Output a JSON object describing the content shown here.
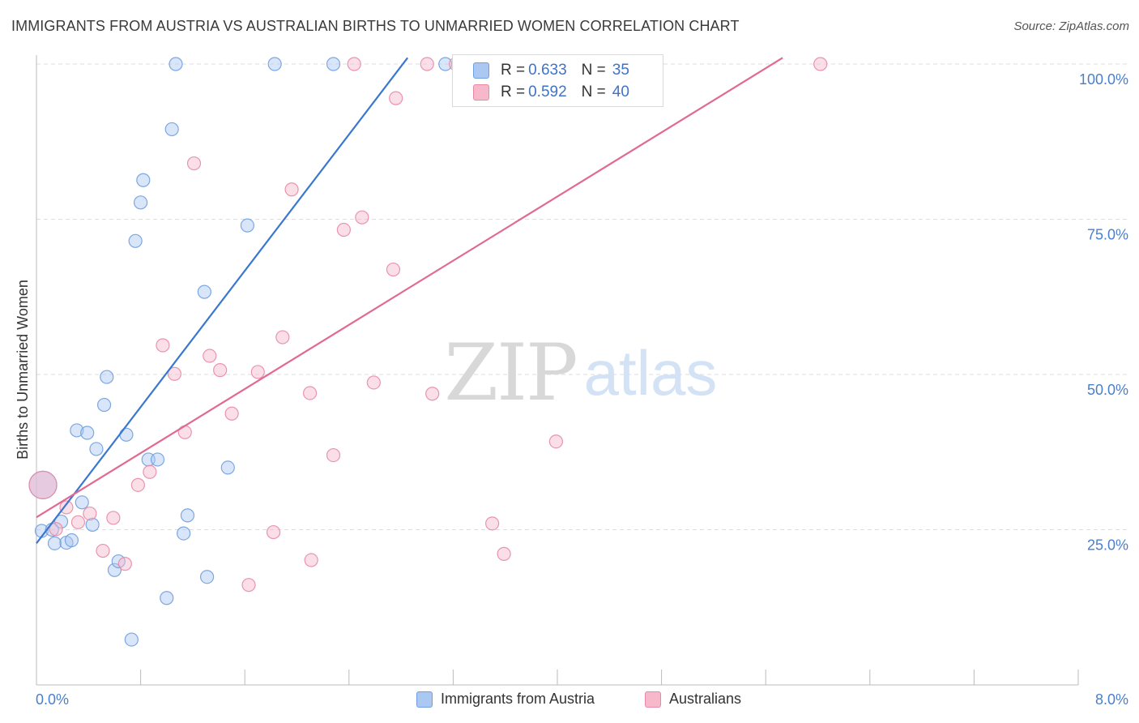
{
  "title": "IMMIGRANTS FROM AUSTRIA VS AUSTRALIAN BIRTHS TO UNMARRIED WOMEN CORRELATION CHART",
  "source": "Source: ZipAtlas.com",
  "watermark": {
    "zip": "ZIP",
    "atlas": "atlas"
  },
  "legend_inset": [
    {
      "r_label": "R = ",
      "r_value": "0.633",
      "n_label": "N = ",
      "n_value": "35",
      "color": "#aac8f2"
    },
    {
      "r_label": "R = ",
      "r_value": "0.592",
      "n_label": "N = ",
      "n_value": "40",
      "color": "#f7b8cb"
    }
  ],
  "legend_bottom": [
    {
      "label": "Immigrants from Austria",
      "color": "#aac8f2"
    },
    {
      "label": "Australians",
      "color": "#f7b8cb"
    }
  ],
  "chart_data": {
    "type": "scatter",
    "title": "IMMIGRANTS FROM AUSTRIA VS AUSTRALIAN BIRTHS TO UNMARRIED WOMEN CORRELATION CHART",
    "xlabel": "",
    "ylabel": "Births to Unmarried Women",
    "xlim": [
      0,
      8
    ],
    "ylim": [
      0,
      102
    ],
    "x_tick_labels": [
      "0.0%",
      "8.0%"
    ],
    "y_ticks": [
      25,
      50,
      75,
      100
    ],
    "y_tick_labels": [
      "25.0%",
      "50.0%",
      "75.0%",
      "100.0%"
    ],
    "grid": true,
    "legend_position": "top-center",
    "series": [
      {
        "name": "Immigrants from Austria",
        "color": "#6f9fe0",
        "fill": "#aac8f2",
        "r": 0.633,
        "n": 35,
        "trend": {
          "x": [
            0.0,
            2.85
          ],
          "y": [
            22.8,
            101.0
          ],
          "color": "#3a78d0"
        },
        "points": [
          [
            0.05,
            32.2,
            "big"
          ],
          [
            0.04,
            24.8
          ],
          [
            0.12,
            25.0
          ],
          [
            0.14,
            22.8
          ],
          [
            0.23,
            22.9
          ],
          [
            0.27,
            23.3
          ],
          [
            0.19,
            26.3
          ],
          [
            0.35,
            29.4
          ],
          [
            0.43,
            25.8
          ],
          [
            0.31,
            41.0
          ],
          [
            0.39,
            40.6
          ],
          [
            0.46,
            38.0
          ],
          [
            0.52,
            45.1
          ],
          [
            0.54,
            49.6
          ],
          [
            0.6,
            18.5
          ],
          [
            0.63,
            19.9
          ],
          [
            0.69,
            40.3
          ],
          [
            0.73,
            7.3
          ],
          [
            0.76,
            71.5
          ],
          [
            0.8,
            77.7
          ],
          [
            0.82,
            81.3
          ],
          [
            0.86,
            36.3
          ],
          [
            0.93,
            36.3
          ],
          [
            1.0,
            14.0
          ],
          [
            1.04,
            89.5
          ],
          [
            1.07,
            100.0
          ],
          [
            1.13,
            24.4
          ],
          [
            1.16,
            27.3
          ],
          [
            1.29,
            63.3
          ],
          [
            1.31,
            17.4
          ],
          [
            1.47,
            35.0
          ],
          [
            1.62,
            74.0
          ],
          [
            1.83,
            100.0
          ],
          [
            2.28,
            100.0
          ],
          [
            3.14,
            100.0
          ]
        ]
      },
      {
        "name": "Australians",
        "color": "#e88aa5",
        "fill": "#f7b8cb",
        "r": 0.592,
        "n": 40,
        "trend": {
          "x": [
            0.0,
            5.73
          ],
          "y": [
            27.0,
            101.0
          ],
          "color": "#e06a92"
        },
        "points": [
          [
            0.05,
            32.2,
            "big"
          ],
          [
            0.15,
            25.1
          ],
          [
            0.23,
            28.6
          ],
          [
            0.32,
            26.2
          ],
          [
            0.41,
            27.6
          ],
          [
            0.51,
            21.6
          ],
          [
            0.59,
            26.9
          ],
          [
            0.68,
            19.5
          ],
          [
            0.78,
            32.2
          ],
          [
            0.87,
            34.3
          ],
          [
            0.97,
            54.7
          ],
          [
            1.06,
            50.1
          ],
          [
            1.14,
            40.7
          ],
          [
            1.21,
            84.0
          ],
          [
            1.33,
            53.0
          ],
          [
            1.41,
            50.7
          ],
          [
            1.5,
            43.7
          ],
          [
            1.63,
            16.1
          ],
          [
            1.7,
            50.4
          ],
          [
            1.82,
            24.6
          ],
          [
            1.89,
            56.0
          ],
          [
            1.96,
            79.8
          ],
          [
            2.1,
            47.0
          ],
          [
            2.11,
            20.1
          ],
          [
            2.28,
            37.0
          ],
          [
            2.36,
            73.3
          ],
          [
            2.44,
            100.0
          ],
          [
            2.5,
            75.3
          ],
          [
            2.59,
            48.7
          ],
          [
            2.74,
            66.9
          ],
          [
            2.76,
            94.5
          ],
          [
            3.0,
            100.0
          ],
          [
            3.04,
            46.9
          ],
          [
            3.22,
            100.0
          ],
          [
            3.36,
            100.0
          ],
          [
            3.5,
            26.0
          ],
          [
            3.59,
            21.1
          ],
          [
            3.79,
            100.0
          ],
          [
            3.99,
            39.2
          ],
          [
            6.02,
            100.0
          ]
        ]
      }
    ]
  }
}
